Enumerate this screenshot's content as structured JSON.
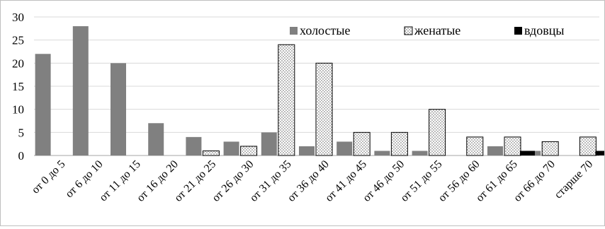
{
  "chart_data": {
    "type": "bar",
    "title": "",
    "xlabel": "",
    "ylabel": "",
    "ylim": [
      0,
      30
    ],
    "yticks": [
      0,
      5,
      10,
      15,
      20,
      25,
      30
    ],
    "grid": true,
    "legend_position": "top-right",
    "categories": [
      "от 0 до 5",
      "от 6 до 10",
      "от 11 до 15",
      "от 16 до 20",
      "от 21 до 25",
      "от 26 до 30",
      "от 31 до 35",
      "от 36 до 40",
      "от 41 до 45",
      "от 46 до 50",
      "от 51 до 55",
      "от 56 до 60",
      "от 61 до 65",
      "от 66 до 70",
      "старше 70"
    ],
    "series": [
      {
        "name": "холостые",
        "color": "#808080",
        "pattern": "solid",
        "values": [
          22,
          28,
          20,
          7,
          4,
          3,
          5,
          2,
          3,
          1,
          1,
          0,
          2,
          1,
          0
        ]
      },
      {
        "name": "женатые",
        "color": "#ffffff",
        "pattern": "dotted",
        "values": [
          0,
          0,
          0,
          0,
          1,
          2,
          24,
          20,
          5,
          5,
          10,
          4,
          4,
          3,
          4
        ]
      },
      {
        "name": "вдовцы",
        "color": "#000000",
        "pattern": "solid",
        "values": [
          0,
          0,
          0,
          0,
          0,
          0,
          0,
          0,
          0,
          0,
          0,
          0,
          1,
          0,
          1
        ]
      }
    ]
  }
}
